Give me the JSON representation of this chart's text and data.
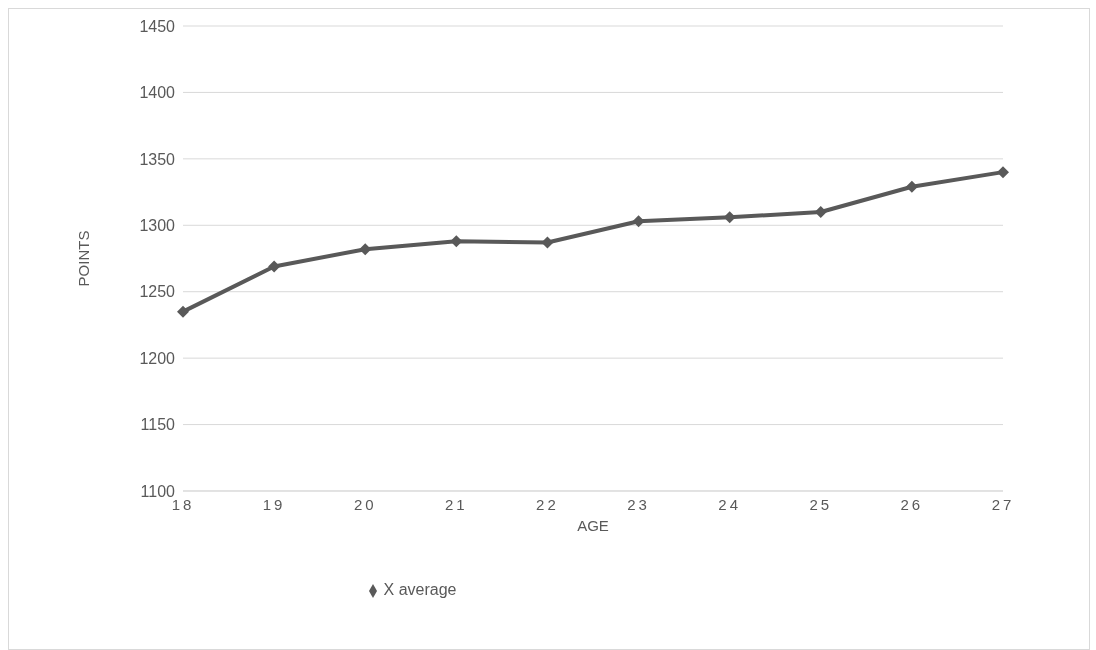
{
  "chart_data": {
    "type": "line",
    "xlabel": "AGE",
    "ylabel": "POINTS",
    "categories": [
      "18",
      "19",
      "20",
      "21",
      "22",
      "23",
      "24",
      "25",
      "26",
      "27"
    ],
    "series": [
      {
        "name": "X average",
        "color": "#595959",
        "values": [
          1235,
          1269,
          1282,
          1288,
          1287,
          1303,
          1306,
          1310,
          1329,
          1340
        ]
      }
    ],
    "ylim": [
      1100,
      1450
    ],
    "yticks": [
      1100,
      1150,
      1200,
      1250,
      1300,
      1350,
      1400,
      1450
    ],
    "grid": "y",
    "legend": "bottom",
    "marker": "diamond",
    "line_style": "solid"
  }
}
